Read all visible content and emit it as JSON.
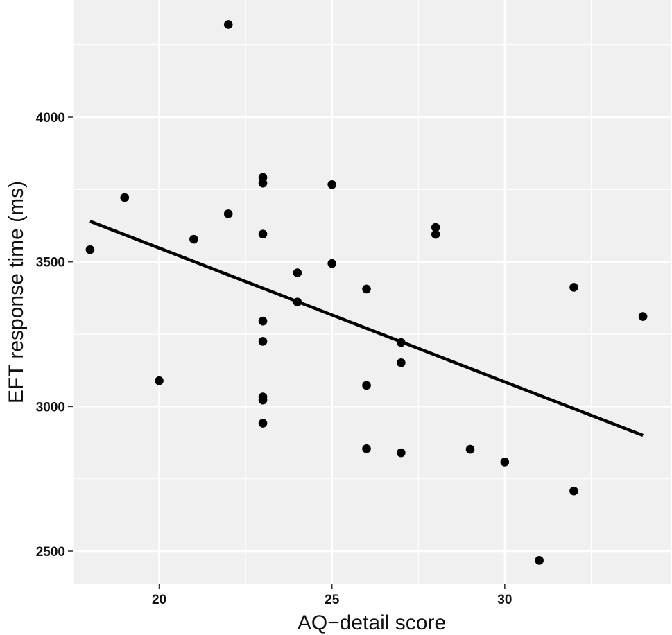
{
  "chart_data": {
    "type": "scatter",
    "title": "",
    "xlabel": "AQ−detail score",
    "ylabel": "EFT response time (ms)",
    "xlim": [
      17.5,
      34.8
    ],
    "ylim": [
      2385,
      4405
    ],
    "x_ticks": [
      20,
      25,
      30
    ],
    "y_ticks": [
      2500,
      3000,
      3500,
      4000
    ],
    "x_tick_labels": [
      "20",
      "25",
      "30"
    ],
    "y_tick_labels": [
      "2500",
      "3000",
      "3500",
      "4000"
    ],
    "grid": true,
    "legend": "none",
    "points": [
      {
        "x": 18,
        "y": 3542
      },
      {
        "x": 19,
        "y": 3722
      },
      {
        "x": 20,
        "y": 3089
      },
      {
        "x": 21,
        "y": 3578
      },
      {
        "x": 22,
        "y": 4320
      },
      {
        "x": 22,
        "y": 3666
      },
      {
        "x": 23,
        "y": 3792
      },
      {
        "x": 23,
        "y": 3772
      },
      {
        "x": 23,
        "y": 3596
      },
      {
        "x": 23,
        "y": 3295
      },
      {
        "x": 23,
        "y": 3225
      },
      {
        "x": 23,
        "y": 3033
      },
      {
        "x": 23,
        "y": 3022
      },
      {
        "x": 23,
        "y": 2942
      },
      {
        "x": 24,
        "y": 3462
      },
      {
        "x": 24,
        "y": 3361
      },
      {
        "x": 25,
        "y": 3767
      },
      {
        "x": 25,
        "y": 3494
      },
      {
        "x": 26,
        "y": 3406
      },
      {
        "x": 26,
        "y": 3073
      },
      {
        "x": 26,
        "y": 2854
      },
      {
        "x": 27,
        "y": 3221
      },
      {
        "x": 27,
        "y": 3151
      },
      {
        "x": 27,
        "y": 2840
      },
      {
        "x": 28,
        "y": 3619
      },
      {
        "x": 28,
        "y": 3595
      },
      {
        "x": 29,
        "y": 2852
      },
      {
        "x": 30,
        "y": 2808
      },
      {
        "x": 31,
        "y": 2468
      },
      {
        "x": 32,
        "y": 3412
      },
      {
        "x": 32,
        "y": 2708
      },
      {
        "x": 34,
        "y": 3311
      }
    ],
    "fit_line": {
      "x": [
        18,
        34
      ],
      "y": [
        3640,
        2900
      ]
    },
    "colors": {
      "panel": "#f0f0f0",
      "grid": "#ffffff",
      "points": "#000000",
      "line": "#000000"
    }
  }
}
